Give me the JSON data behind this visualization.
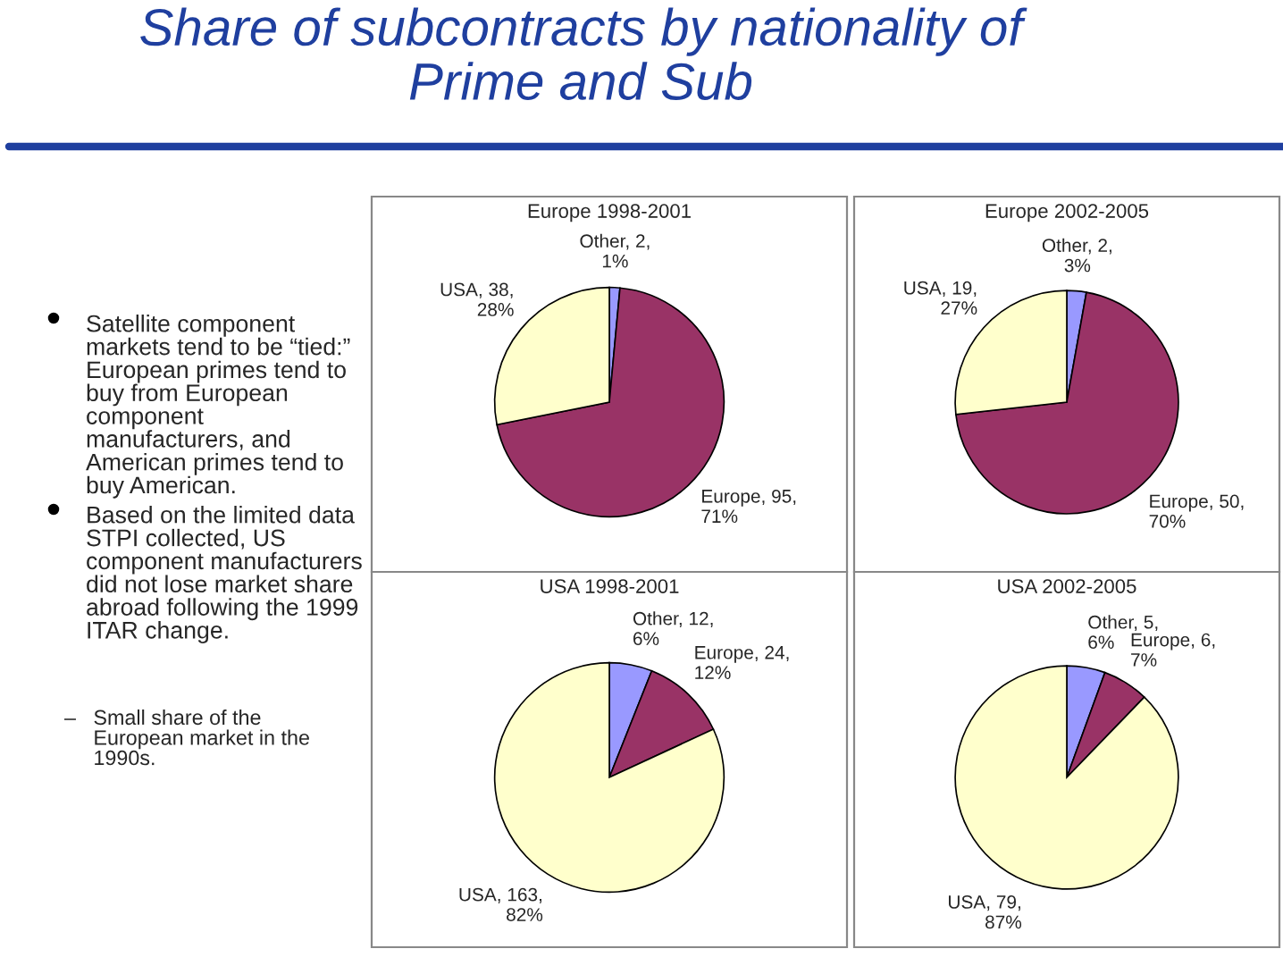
{
  "chart_data": [
    {
      "type": "other",
      "title": "Share of subcontracts by nationality of\nPrime and Sub",
      "annotations": [
        "Satellite component\nmarkets tend to be “tied:”\nEuropean primes tend to\nbuy from European\ncomponent\nmanufacturers, and\nAmerican primes tend to\nbuy American.",
        "Based on the limited data\nSTPI collected, US\ncomponent manufacturers\ndid not lose market share\nabroad following the 1999\nITAR change.",
        "–   Small share of the\n     European market in the\n     1990s."
      ]
    },
    {
      "type": "pie",
      "title": "Europe 1998-2001",
      "categories": [
        "Other",
        "Europe",
        "USA"
      ],
      "values": [
        2,
        95,
        38
      ],
      "colors": [
        "#9999ff",
        "#993366",
        "#ffffcc"
      ],
      "value_labels": [
        "2,\n1%",
        "95,\n71%",
        "38,\n28%"
      ]
    },
    {
      "type": "pie",
      "title": "Europe 2002-2005",
      "categories": [
        "Other",
        "Europe",
        "USA"
      ],
      "values": [
        2,
        50,
        19
      ],
      "colors": [
        "#9999ff",
        "#993366",
        "#ffffcc"
      ],
      "value_labels": [
        "2,\n3%",
        "50,\n70%",
        "19,\n27%"
      ]
    },
    {
      "type": "pie",
      "title": "USA 1998-2001",
      "categories": [
        "Other",
        "Europe",
        "USA"
      ],
      "values": [
        12,
        24,
        163
      ],
      "colors": [
        "#9999ff",
        "#993366",
        "#ffffcc"
      ],
      "value_labels": [
        "12,\n6%",
        "24,\n12%",
        "163,\n82%"
      ]
    },
    {
      "type": "pie",
      "title": "USA 2002-2005",
      "categories": [
        "Other",
        "Europe",
        "USA"
      ],
      "values": [
        5,
        6,
        79
      ],
      "colors": [
        "#9999ff",
        "#993366",
        "#ffffcc"
      ],
      "value_labels": [
        "5,\n6%",
        "6,\n7%",
        "79,\n87%"
      ]
    }
  ]
}
